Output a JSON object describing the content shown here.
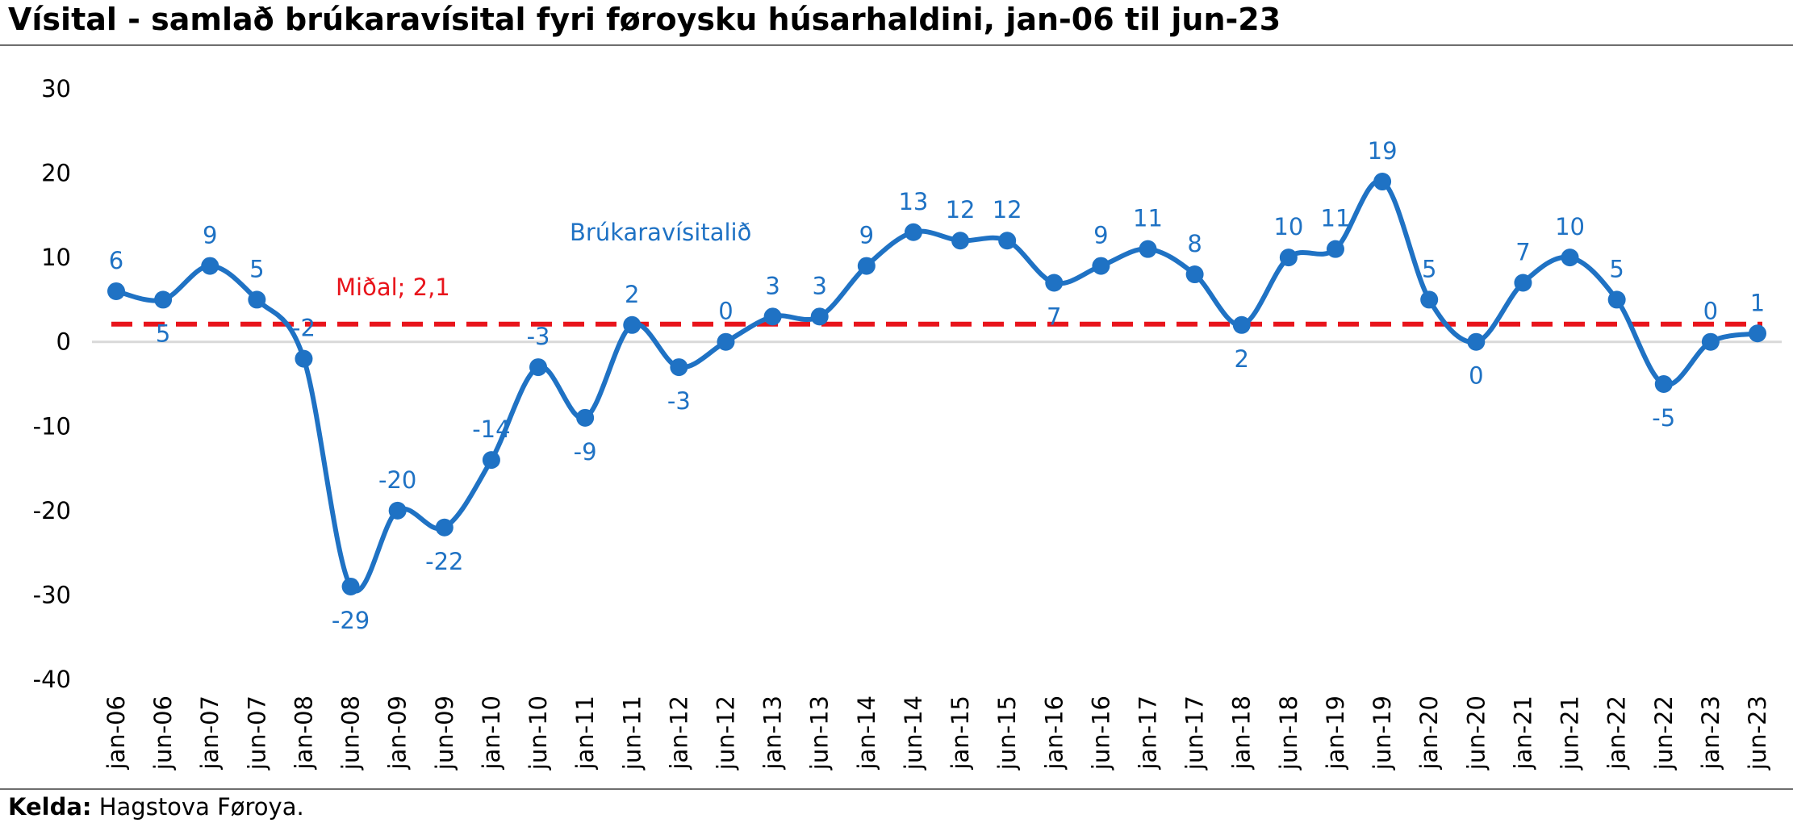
{
  "title": "Vísital - samlað brúkaravísital fyri føroysku húsarhaldini, jan-06 til jun-23",
  "source": {
    "label": "Kelda:",
    "text": "Hagstova Føroya."
  },
  "chart_data": {
    "type": "line",
    "title": "Vísital - samlað brúkaravísital fyri føroysku húsarhaldini, jan-06 til jun-23",
    "xlabel": "",
    "ylabel": "",
    "ylim": [
      -40,
      30
    ],
    "yticks": [
      30,
      20,
      10,
      0,
      -10,
      -20,
      -30,
      -40
    ],
    "grid": false,
    "categories": [
      "jan-06",
      "jun-06",
      "jan-07",
      "jun-07",
      "jan-08",
      "jun-08",
      "jan-09",
      "jun-09",
      "jan-10",
      "jun-10",
      "jan-11",
      "jun-11",
      "jan-12",
      "jun-12",
      "jan-13",
      "jun-13",
      "jan-14",
      "jun-14",
      "jan-15",
      "jun-15",
      "jan-16",
      "jun-16",
      "jan-17",
      "jun-17",
      "jan-18",
      "jun-18",
      "jan-19",
      "jun-19",
      "jan-20",
      "jun-20",
      "jan-21",
      "jun-21",
      "jan-22",
      "jun-22",
      "jan-23",
      "jun-23"
    ],
    "series": [
      {
        "name": "Brúkaravísitalið",
        "color": "#1f72c4",
        "smooth": true,
        "markers": true,
        "values": [
          6,
          5,
          9,
          5,
          -2,
          -29,
          -20,
          -22,
          -14,
          -3,
          -9,
          2,
          -3,
          0,
          3,
          3,
          9,
          13,
          12,
          12,
          7,
          9,
          11,
          8,
          2,
          10,
          11,
          19,
          5,
          0,
          7,
          10,
          5,
          -5,
          0,
          1
        ],
        "data_labels": [
          "6",
          "5",
          "9",
          "5",
          "-2",
          "-29",
          "-20",
          "-22",
          "-14",
          "-3",
          "-9",
          "2",
          "-3",
          "0",
          "3",
          "3",
          "9",
          "13",
          "12",
          "12",
          "7",
          "9",
          "11",
          "8",
          "2",
          "10",
          "11",
          "19",
          "5",
          "0",
          "7",
          "10",
          "5",
          "-5",
          "0",
          "1"
        ]
      }
    ],
    "reference_line": {
      "label": "Miðal; 2,1",
      "value": 2.1,
      "color": "#e8141b",
      "style": "dashed"
    },
    "zero_line_color": "#d9d9d9"
  }
}
